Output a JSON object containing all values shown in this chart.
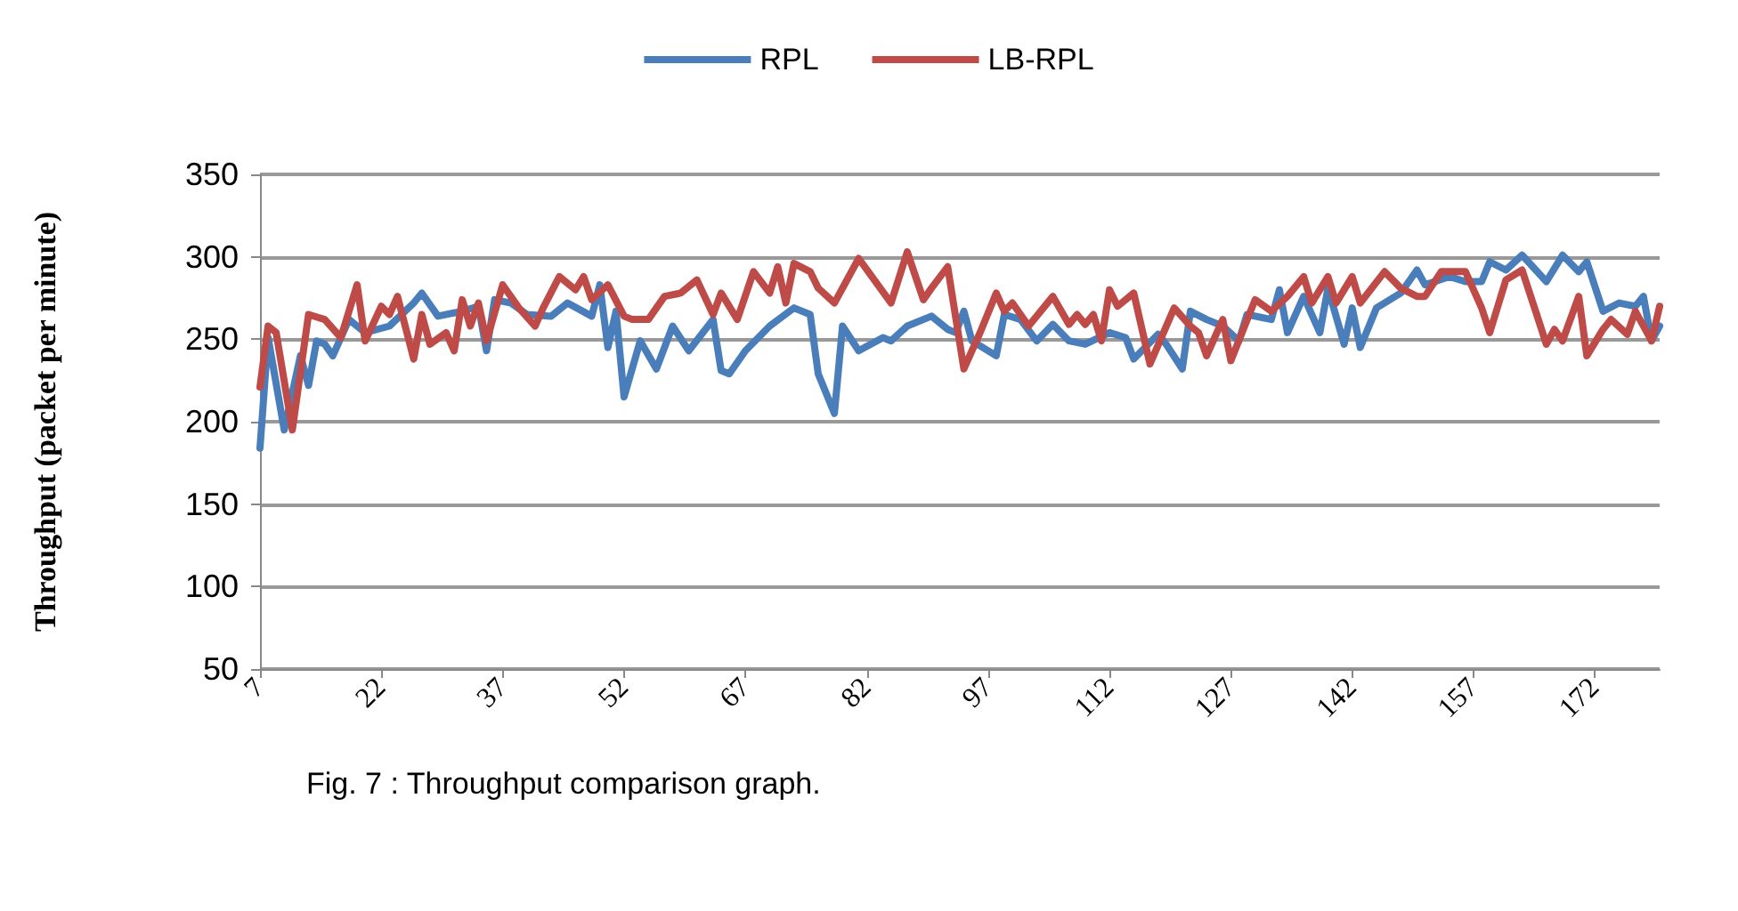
{
  "chart_data": {
    "type": "line",
    "ylabel": "Throughput (packet per minute)",
    "annotations": [
      "Fig. 7 : Throughput comparison graph."
    ],
    "xlim": [
      7,
      180
    ],
    "xticks": [
      7,
      22,
      37,
      52,
      67,
      82,
      97,
      112,
      127,
      142,
      157,
      172
    ],
    "ylim": [
      50,
      350
    ],
    "yticks": [
      50,
      100,
      150,
      200,
      250,
      300,
      350
    ],
    "grid": "y",
    "legend": "top",
    "marker": "none",
    "line_style": "solid",
    "series": [
      {
        "name": "RPL",
        "color": "#4a7ebb",
        "x": [
          7,
          8,
          10,
          12,
          13,
          14,
          15,
          16,
          18,
          20,
          23,
          26,
          27,
          29,
          32,
          34,
          35,
          36,
          38,
          40,
          43,
          45,
          48,
          49,
          50,
          51,
          52,
          54,
          56,
          58,
          60,
          63,
          64,
          65,
          67,
          69,
          70,
          73,
          75,
          76,
          78,
          79,
          81,
          84,
          85,
          87,
          90,
          92,
          93,
          94,
          95,
          98,
          99,
          101,
          103,
          105,
          107,
          109,
          112,
          114,
          115,
          118,
          119,
          121,
          122,
          124,
          126,
          128,
          129,
          132,
          133,
          134,
          136,
          138,
          139,
          141,
          142,
          143,
          145,
          148,
          150,
          151,
          154,
          156,
          158,
          159,
          161,
          163,
          166,
          168,
          170,
          171,
          173,
          175,
          177,
          178,
          179,
          180
        ],
        "values": [
          184,
          251,
          195,
          240,
          222,
          249,
          247,
          240,
          262,
          254,
          258,
          272,
          278,
          264,
          267,
          270,
          243,
          274,
          272,
          265,
          264,
          272,
          264,
          283,
          245,
          267,
          215,
          249,
          232,
          258,
          243,
          262,
          231,
          229,
          243,
          253,
          258,
          269,
          265,
          229,
          205,
          258,
          243,
          251,
          249,
          258,
          264,
          256,
          254,
          267,
          249,
          240,
          265,
          262,
          249,
          259,
          249,
          247,
          254,
          251,
          238,
          253,
          247,
          232,
          267,
          262,
          258,
          249,
          265,
          262,
          280,
          254,
          276,
          254,
          281,
          247,
          269,
          245,
          269,
          278,
          292,
          283,
          288,
          285,
          285,
          297,
          292,
          301,
          285,
          301,
          291,
          297,
          267,
          272,
          270,
          276,
          249,
          258
        ]
      },
      {
        "name": "LB-RPL",
        "color": "#be4b48",
        "x": [
          7,
          8,
          9,
          11,
          13,
          15,
          17,
          19,
          20,
          22,
          23,
          24,
          26,
          27,
          28,
          30,
          31,
          32,
          33,
          34,
          35,
          37,
          39,
          41,
          42,
          44,
          46,
          47,
          48,
          50,
          52,
          53,
          55,
          57,
          59,
          61,
          63,
          64,
          66,
          68,
          70,
          71,
          72,
          73,
          75,
          76,
          78,
          81,
          85,
          87,
          89,
          90,
          92,
          94,
          96,
          98,
          99,
          100,
          102,
          105,
          107,
          108,
          109,
          110,
          111,
          112,
          113,
          115,
          117,
          120,
          122,
          123,
          124,
          126,
          127,
          130,
          132,
          134,
          136,
          137,
          139,
          140,
          142,
          143,
          146,
          148,
          150,
          151,
          153,
          156,
          158,
          159,
          161,
          163,
          165,
          166,
          167,
          168,
          170,
          171,
          173,
          174,
          176,
          177,
          179,
          180
        ],
        "values": [
          221,
          258,
          254,
          195,
          265,
          262,
          251,
          283,
          249,
          270,
          265,
          276,
          238,
          265,
          247,
          254,
          243,
          274,
          258,
          272,
          249,
          283,
          269,
          258,
          269,
          288,
          280,
          288,
          274,
          283,
          264,
          262,
          262,
          276,
          278,
          286,
          265,
          278,
          262,
          291,
          278,
          294,
          272,
          296,
          291,
          281,
          272,
          299,
          272,
          303,
          274,
          281,
          294,
          232,
          254,
          278,
          267,
          272,
          258,
          276,
          259,
          265,
          259,
          265,
          249,
          280,
          270,
          278,
          235,
          269,
          258,
          254,
          240,
          262,
          237,
          274,
          267,
          276,
          288,
          272,
          288,
          272,
          288,
          272,
          291,
          281,
          276,
          276,
          291,
          291,
          269,
          254,
          286,
          292,
          262,
          247,
          256,
          249,
          276,
          240,
          256,
          262,
          253,
          267,
          249,
          270
        ]
      }
    ]
  }
}
